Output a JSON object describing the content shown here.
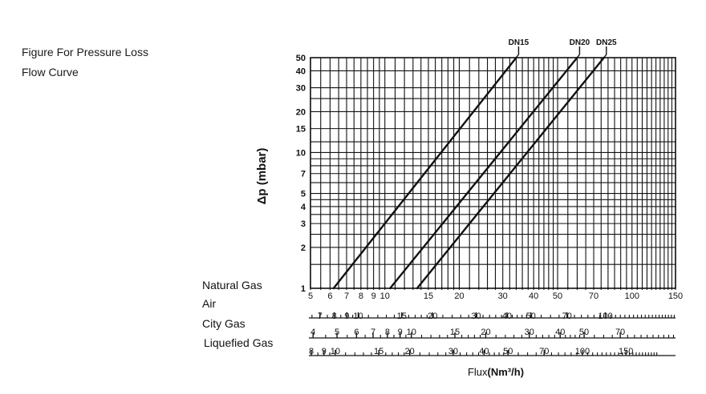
{
  "captions": [
    "Figure For Pressure Loss",
    "Flow Curve"
  ],
  "chart_data": {
    "type": "line",
    "title": "",
    "ylabel": "Δp (mbar)",
    "xlabel_prefix": "Flux",
    "xlabel_unit": "(Nm³/h)",
    "yscale": "log",
    "xscale": "log",
    "ylim": [
      1,
      50
    ],
    "xlim": [
      5,
      150
    ],
    "y_ticks": [
      1,
      2,
      3,
      4,
      5,
      7,
      10,
      15,
      20,
      30,
      40,
      50
    ],
    "series": [
      {
        "name": "DN15",
        "x": [
          6.2,
          34
        ],
        "y": [
          1,
          50
        ]
      },
      {
        "name": "DN20",
        "x": [
          10.5,
          60
        ],
        "y": [
          1,
          50
        ]
      },
      {
        "name": "DN25",
        "x": [
          13.5,
          77
        ],
        "y": [
          1,
          50
        ]
      }
    ],
    "scales": [
      {
        "name": "Natural Gas",
        "labels": [
          5,
          6,
          7,
          8,
          9,
          10,
          15,
          20,
          30,
          40,
          50,
          70,
          100,
          150
        ]
      },
      {
        "name": "Air",
        "labels": [
          4,
          5,
          6,
          7,
          8,
          9,
          10,
          15,
          20,
          30,
          40,
          50,
          70,
          100
        ]
      },
      {
        "name": "City Gas",
        "labels": [
          4,
          5,
          6,
          7,
          8,
          9,
          10,
          15,
          20,
          30,
          40,
          50,
          70
        ]
      },
      {
        "name": "Liquefied Gas",
        "labels": [
          7,
          8,
          9,
          10,
          15,
          20,
          30,
          40,
          50,
          70,
          100,
          150
        ]
      }
    ],
    "scale_factors": {
      "Natural Gas": 1,
      "Air": 0.78,
      "City Gas": 1.28,
      "Liquefied Gas": 0.63
    },
    "grid": true
  }
}
